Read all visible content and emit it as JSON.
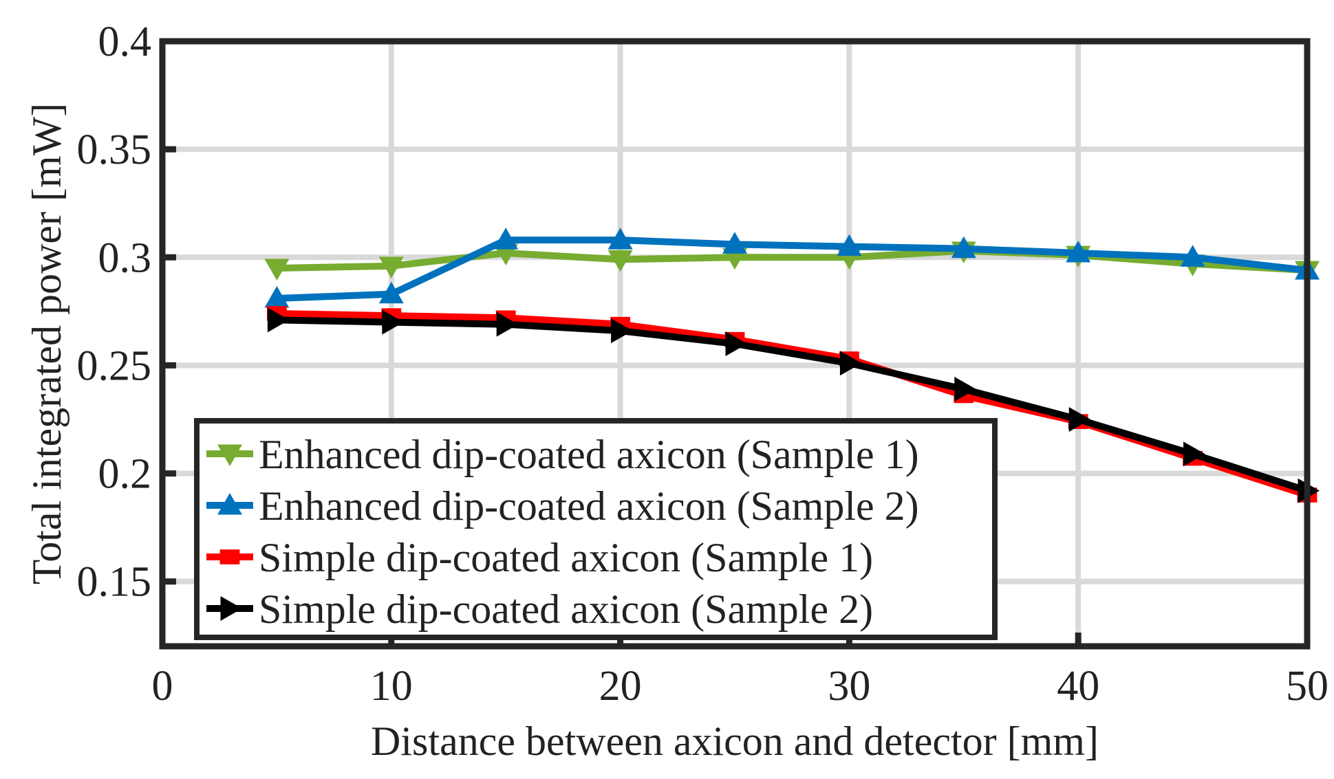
{
  "chart_data": {
    "type": "line",
    "title": "",
    "xlabel": "Distance between axicon and detector [mm]",
    "ylabel": "Total integrated power [mW]",
    "xlim": [
      0,
      50
    ],
    "ylim": [
      0.12,
      0.4
    ],
    "xticks": [
      {
        "value": 0,
        "label": "0"
      },
      {
        "value": 10,
        "label": "10"
      },
      {
        "value": 20,
        "label": "20"
      },
      {
        "value": 30,
        "label": "30"
      },
      {
        "value": 40,
        "label": "40"
      },
      {
        "value": 50,
        "label": "50"
      }
    ],
    "yticks": [
      {
        "value": 0.15,
        "label": "0.15"
      },
      {
        "value": 0.2,
        "label": "0.2"
      },
      {
        "value": 0.25,
        "label": "0.25"
      },
      {
        "value": 0.3,
        "label": "0.3"
      },
      {
        "value": 0.35,
        "label": "0.35"
      },
      {
        "value": 0.4,
        "label": "0.4"
      }
    ],
    "grid": true,
    "legend_position": "bottom-left",
    "x": [
      5,
      10,
      15,
      20,
      25,
      30,
      35,
      40,
      45,
      50
    ],
    "series": [
      {
        "name": "Enhanced dip-coated axicon (Sample 1)",
        "color": "#77AC30",
        "marker": "triangle-down",
        "values": [
          0.295,
          0.296,
          0.302,
          0.299,
          0.3,
          0.3,
          0.303,
          0.301,
          0.297,
          0.294
        ]
      },
      {
        "name": "Enhanced dip-coated axicon (Sample 2)",
        "color": "#0072BD",
        "marker": "triangle-up",
        "values": [
          0.281,
          0.283,
          0.308,
          0.308,
          0.306,
          0.305,
          0.304,
          0.302,
          0.3,
          0.294
        ]
      },
      {
        "name": "Simple dip-coated axicon (Sample 1)",
        "color": "#FF0000",
        "marker": "square",
        "values": [
          0.274,
          0.273,
          0.272,
          0.269,
          0.262,
          0.253,
          0.236,
          0.224,
          0.207,
          0.19
        ]
      },
      {
        "name": "Simple dip-coated axicon (Sample 2)",
        "color": "#000000",
        "marker": "triangle-right",
        "values": [
          0.271,
          0.27,
          0.269,
          0.266,
          0.26,
          0.251,
          0.239,
          0.225,
          0.209,
          0.192
        ]
      }
    ]
  }
}
